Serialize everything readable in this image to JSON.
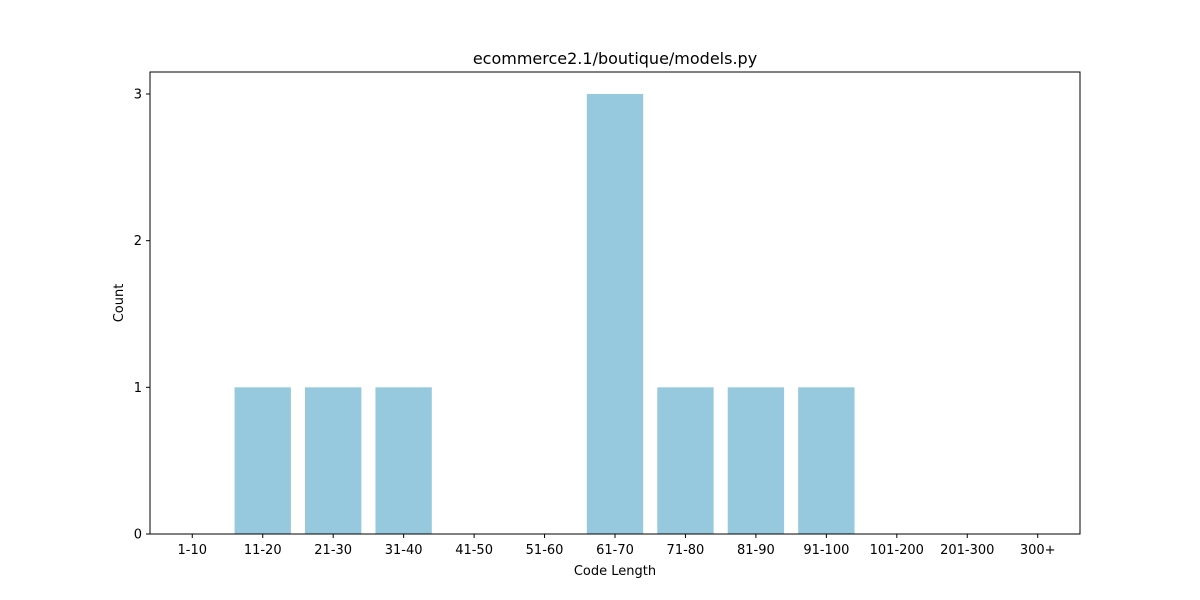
{
  "chart_data": {
    "type": "bar",
    "title": "ecommerce2.1/boutique/models.py",
    "xlabel": "Code Length",
    "ylabel": "Count",
    "categories": [
      "1-10",
      "11-20",
      "21-30",
      "31-40",
      "41-50",
      "51-60",
      "61-70",
      "71-80",
      "81-90",
      "91-100",
      "101-200",
      "201-300",
      "300+"
    ],
    "values": [
      0,
      1,
      1,
      1,
      0,
      0,
      3,
      1,
      1,
      1,
      0,
      0,
      0
    ],
    "ylim": [
      0,
      3.15
    ],
    "yticks": [
      "0",
      "1",
      "2",
      "3"
    ],
    "bar_color": "#96c9de",
    "grid": false,
    "legend": "none"
  }
}
